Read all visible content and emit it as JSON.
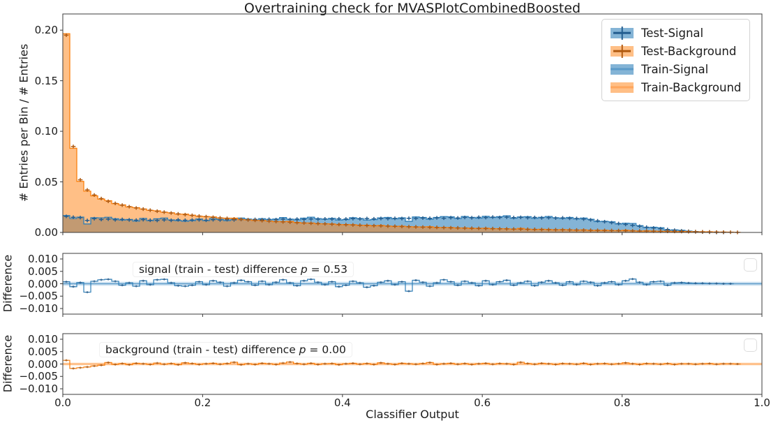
{
  "title": "Overtraining check for MVASPlotCombinedBoosted",
  "chart_data": {
    "type": "area",
    "subtype": "step-histogram with difference subpanels",
    "xlabel": "Classifier Output",
    "xlim": [
      0,
      1
    ],
    "xticks": [
      "0.0",
      "0.2",
      "0.4",
      "0.6",
      "0.8",
      "1.0"
    ],
    "bins": 100,
    "grid": false,
    "legend_position": "upper right",
    "colors": {
      "signal": "#1f77b4",
      "signal_fill": "rgba(31,119,180,0.55)",
      "signal_edge": "#2f7fb8",
      "signal_dark": "#235d8f",
      "signal_mid": "#5b9bc9",
      "signal_band": "#cfe2f1",
      "background": "#ff7f0e",
      "background_fill": "rgba(255,127,14,0.5)",
      "background_edge": "#fb810f",
      "background_dark": "#b05a10",
      "background_mid": "#ffa65c",
      "background_band": "#ffe3c9"
    },
    "panels": [
      {
        "name": "main",
        "ylabel": "# Entries per Bin / # Entries",
        "ylim": [
          0,
          0.216
        ],
        "yticks": [
          "0.00",
          "0.05",
          "0.10",
          "0.15",
          "0.20"
        ],
        "legend": [
          "Test-Signal",
          "Test-Background",
          "Train-Signal",
          "Train-Background"
        ],
        "series": {
          "test_signal": {
            "name": "Test-Signal",
            "values": [
              0.0159,
              0.015,
              0.0147,
              0.0118,
              0.0136,
              0.0128,
              0.0132,
              0.0125,
              0.0129,
              0.0124,
              0.0122,
              0.0127,
              0.0121,
              0.0119,
              0.0124,
              0.012,
              0.0125,
              0.0121,
              0.0123,
              0.0125,
              0.0121,
              0.0126,
              0.0123,
              0.0127,
              0.0124,
              0.0128,
              0.0125,
              0.0129,
              0.0126,
              0.013,
              0.0127,
              0.0131,
              0.0128,
              0.0132,
              0.0129,
              0.0133,
              0.0131,
              0.0134,
              0.0132,
              0.0135,
              0.0133,
              0.0136,
              0.0134,
              0.0137,
              0.0135,
              0.0138,
              0.0136,
              0.0139,
              0.0137,
              0.014,
              0.0139,
              0.0142,
              0.014,
              0.0144,
              0.0141,
              0.0146,
              0.0143,
              0.0148,
              0.0145,
              0.015,
              0.0147,
              0.0152,
              0.0148,
              0.0151,
              0.0147,
              0.0149,
              0.0146,
              0.0148,
              0.0144,
              0.0146,
              0.0142,
              0.0144,
              0.014,
              0.0138,
              0.0132,
              0.0124,
              0.0115,
              0.0106,
              0.0097,
              0.0088,
              0.0079,
              0.007,
              0.0061,
              0.0052,
              0.0044,
              0.0036,
              0.0029,
              0.0022,
              0.0016,
              0.0011,
              0.0007,
              0.0004,
              0.0002,
              0.0001,
              0.0001,
              0.0,
              0.0,
              0.0,
              0.0,
              0.0
            ]
          },
          "test_background": {
            "name": "Test-Background",
            "values": [
              0.195,
              0.085,
              0.052,
              0.042,
              0.037,
              0.0335,
              0.0308,
              0.0287,
              0.027,
              0.0255,
              0.0242,
              0.0231,
              0.022,
              0.021,
              0.0201,
              0.0192,
              0.0184,
              0.0176,
              0.0169,
              0.0162,
              0.0156,
              0.015,
              0.0144,
              0.0139,
              0.0134,
              0.0129,
              0.0124,
              0.012,
              0.0116,
              0.0112,
              0.0108,
              0.0104,
              0.0101,
              0.0097,
              0.0094,
              0.0091,
              0.0088,
              0.0085,
              0.0082,
              0.0079,
              0.0077,
              0.0074,
              0.0072,
              0.0069,
              0.0067,
              0.0065,
              0.0063,
              0.0061,
              0.0059,
              0.0057,
              0.0055,
              0.0053,
              0.0051,
              0.005,
              0.0048,
              0.0046,
              0.0045,
              0.0043,
              0.0042,
              0.004,
              0.0039,
              0.0038,
              0.0036,
              0.0035,
              0.0034,
              0.0033,
              0.0031,
              0.003,
              0.0029,
              0.0028,
              0.0027,
              0.0026,
              0.0025,
              0.0024,
              0.0023,
              0.0022,
              0.0021,
              0.002,
              0.0019,
              0.0018,
              0.0017,
              0.0016,
              0.0015,
              0.0014,
              0.0013,
              0.0012,
              0.0011,
              0.001,
              0.0009,
              0.0008,
              0.0007,
              0.0006,
              0.0005,
              0.0004,
              0.0003,
              0.0002,
              0.0001,
              0.0,
              0.0,
              0.0
            ]
          },
          "train_signal": {
            "name": "Train-Signal",
            "values": [
              0.0167,
              0.0138,
              0.0152,
              0.0084,
              0.0146,
              0.0144,
              0.015,
              0.0135,
              0.0123,
              0.0128,
              0.0112,
              0.0139,
              0.0117,
              0.0135,
              0.0142,
              0.0124,
              0.0117,
              0.0111,
              0.0117,
              0.0133,
              0.0117,
              0.0138,
              0.0129,
              0.0117,
              0.0128,
              0.0142,
              0.0133,
              0.0123,
              0.0136,
              0.0126,
              0.0133,
              0.0147,
              0.0132,
              0.0124,
              0.0141,
              0.0151,
              0.0137,
              0.013,
              0.014,
              0.0123,
              0.0127,
              0.0146,
              0.0138,
              0.0123,
              0.0127,
              0.0144,
              0.0148,
              0.0135,
              0.0145,
              0.011,
              0.0153,
              0.0148,
              0.013,
              0.0148,
              0.0157,
              0.0154,
              0.0137,
              0.0158,
              0.0149,
              0.0142,
              0.0159,
              0.0148,
              0.0156,
              0.0165,
              0.0141,
              0.0153,
              0.0156,
              0.014,
              0.015,
              0.0158,
              0.0146,
              0.0138,
              0.0148,
              0.0134,
              0.0142,
              0.013,
              0.0107,
              0.011,
              0.0105,
              0.0084,
              0.0091,
              0.0089,
              0.0067,
              0.0048,
              0.0052,
              0.0046,
              0.0023,
              0.0026,
              0.0021,
              0.0014,
              0.0009,
              0.0006,
              0.0003,
              0.0002,
              0.0001,
              0.0,
              0.0,
              0.0,
              0.0,
              0.0
            ]
          },
          "train_background": {
            "name": "Train-Background",
            "values": [
              0.1965,
              0.0832,
              0.0505,
              0.0408,
              0.0362,
              0.033,
              0.0314,
              0.0285,
              0.0272,
              0.0252,
              0.0245,
              0.0232,
              0.0218,
              0.0214,
              0.02,
              0.0194,
              0.0181,
              0.0181,
              0.0171,
              0.016,
              0.0157,
              0.0153,
              0.0143,
              0.0141,
              0.0141,
              0.0126,
              0.0125,
              0.0118,
              0.0119,
              0.0113,
              0.0106,
              0.0108,
              0.0109,
              0.0099,
              0.0093,
              0.0094,
              0.0086,
              0.0086,
              0.0084,
              0.0076,
              0.0078,
              0.0077,
              0.0071,
              0.0071,
              0.0065,
              0.007,
              0.0064,
              0.0059,
              0.0062,
              0.0058,
              0.0054,
              0.0055,
              0.0057,
              0.0048,
              0.0049,
              0.0049,
              0.0044,
              0.0045,
              0.004,
              0.0041,
              0.0042,
              0.0037,
              0.0038,
              0.0036,
              0.0032,
              0.004,
              0.0033,
              0.0029,
              0.0032,
              0.0029,
              0.0025,
              0.0028,
              0.0026,
              0.0023,
              0.0026,
              0.002,
              0.0022,
              0.0022,
              0.0018,
              0.0019,
              0.0022,
              0.0017,
              0.0013,
              0.0016,
              0.0014,
              0.0011,
              0.0013,
              0.0008,
              0.001,
              0.0009,
              0.0006,
              0.0007,
              0.0007,
              0.0003,
              0.0004,
              0.0003,
              0.0001,
              0.0,
              0.0,
              0.0
            ]
          }
        }
      },
      {
        "name": "signal-difference",
        "ylabel": "Difference",
        "ylim": [
          -0.01225,
          0.01225
        ],
        "yticks": [
          "0.010",
          "0.005",
          "0.000",
          "−0.005",
          "−0.010"
        ],
        "annotation": {
          "text": "signal (train - test) difference ",
          "p_symbol": "p",
          "p_value": " = 0.53"
        },
        "band_halfwidth": 0.0008,
        "last_bin": 96,
        "values": [
          0.0008,
          -0.0012,
          0.0005,
          -0.0034,
          0.001,
          0.0016,
          0.0018,
          0.001,
          -0.0006,
          0.0004,
          -0.001,
          0.0012,
          -0.0004,
          0.0016,
          0.0018,
          0.0004,
          -0.0008,
          -0.001,
          -0.0006,
          0.0008,
          -0.0004,
          0.0012,
          0.0006,
          -0.001,
          0.0004,
          0.0014,
          0.0008,
          -0.0006,
          0.001,
          -0.0004,
          0.0006,
          0.0016,
          0.0004,
          -0.0008,
          0.0012,
          0.0018,
          0.0006,
          -0.0004,
          0.0008,
          -0.0012,
          -0.0006,
          0.001,
          0.0004,
          -0.0014,
          -0.0008,
          0.0006,
          0.0012,
          -0.0004,
          0.0008,
          -0.003,
          0.0014,
          0.0006,
          -0.001,
          0.0004,
          0.0016,
          0.0008,
          -0.0006,
          0.001,
          0.0004,
          -0.0008,
          0.0012,
          -0.0004,
          0.0008,
          0.0014,
          -0.0006,
          0.0004,
          0.001,
          -0.0008,
          0.0006,
          0.0012,
          0.0004,
          -0.0006,
          0.0008,
          -0.0004,
          0.001,
          0.0006,
          -0.0008,
          0.0004,
          0.0008,
          -0.0004,
          0.0012,
          0.0019,
          0.0006,
          -0.0004,
          0.0008,
          0.001,
          -0.0006,
          0.0004,
          0.0005,
          0.0003,
          0.0002,
          0.0002,
          0.0001,
          0.0001,
          0.0,
          0.0,
          0.0,
          0.0,
          0.0,
          0.0
        ]
      },
      {
        "name": "background-difference",
        "ylabel": "Difference",
        "ylim": [
          -0.01225,
          0.01225
        ],
        "yticks": [
          "0.010",
          "0.005",
          "0.000",
          "−0.005",
          "−0.010"
        ],
        "annotation": {
          "text": "background (train - test) difference ",
          "p_symbol": "p",
          "p_value": " = 0.00"
        },
        "band_halfwidth": 0.0006,
        "last_bin": 97,
        "values": [
          0.0015,
          -0.0018,
          -0.0015,
          -0.0012,
          -0.0008,
          -0.0005,
          0.0006,
          -0.0002,
          0.0002,
          -0.0003,
          0.0003,
          0.0001,
          -0.0002,
          0.0004,
          -0.0001,
          0.0002,
          -0.0003,
          0.0005,
          0.0002,
          -0.0002,
          0.0001,
          0.0003,
          -0.0001,
          0.0002,
          0.0007,
          -0.0003,
          0.0001,
          -0.0002,
          0.0003,
          0.0001,
          -0.0002,
          0.0004,
          0.0008,
          0.0002,
          -0.0001,
          0.0003,
          -0.0002,
          0.0001,
          0.0002,
          -0.0003,
          0.0001,
          0.0003,
          -0.0001,
          0.0002,
          -0.0002,
          0.0005,
          0.0001,
          -0.0002,
          0.0003,
          0.0001,
          -0.0001,
          0.0002,
          0.0006,
          -0.0002,
          0.0001,
          0.0003,
          -0.0001,
          0.0002,
          -0.0002,
          0.0001,
          0.0003,
          -0.0001,
          0.0002,
          0.0001,
          -0.0002,
          0.0007,
          0.0002,
          -0.0001,
          0.0003,
          0.0001,
          -0.0002,
          0.0002,
          0.0001,
          -0.0001,
          0.0003,
          -0.0002,
          0.0001,
          0.0002,
          -0.0001,
          0.0001,
          0.0005,
          0.0001,
          -0.0002,
          0.0002,
          0.0001,
          -0.0001,
          0.0002,
          -0.0002,
          0.0001,
          0.0001,
          -0.0001,
          0.0001,
          0.0002,
          -0.0001,
          0.0001,
          0.0001,
          0.0,
          0.0,
          0.0,
          0.0
        ]
      }
    ]
  }
}
